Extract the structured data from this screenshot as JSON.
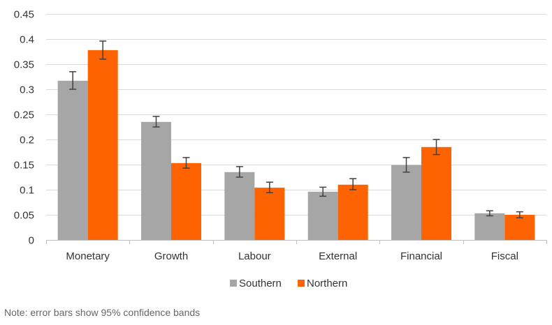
{
  "chart_data": {
    "type": "bar",
    "title": "",
    "xlabel": "",
    "ylabel": "",
    "ylim": [
      0,
      0.45
    ],
    "yticks": [
      "0",
      "0.05",
      "0.1",
      "0.15",
      "0.2",
      "0.25",
      "0.3",
      "0.35",
      "0.4",
      "0.45"
    ],
    "grid": true,
    "legend_position": "bottom",
    "categories": [
      "Monetary",
      "Growth",
      "Labour",
      "External",
      "Financial",
      "Fiscal"
    ],
    "series": [
      {
        "name": "Southern",
        "color": "#a6a6a6",
        "values": [
          0.317,
          0.235,
          0.135,
          0.096,
          0.149,
          0.053
        ],
        "error_low": [
          0.3,
          0.225,
          0.125,
          0.087,
          0.135,
          0.048
        ],
        "error_high": [
          0.335,
          0.246,
          0.146,
          0.105,
          0.164,
          0.058
        ]
      },
      {
        "name": "Northern",
        "color": "#ff6200",
        "values": [
          0.378,
          0.153,
          0.104,
          0.11,
          0.185,
          0.05
        ],
        "error_low": [
          0.36,
          0.143,
          0.094,
          0.1,
          0.17,
          0.044
        ],
        "error_high": [
          0.396,
          0.164,
          0.115,
          0.122,
          0.2,
          0.056
        ]
      }
    ]
  },
  "note": "Note: error bars show 95% confidence bands"
}
